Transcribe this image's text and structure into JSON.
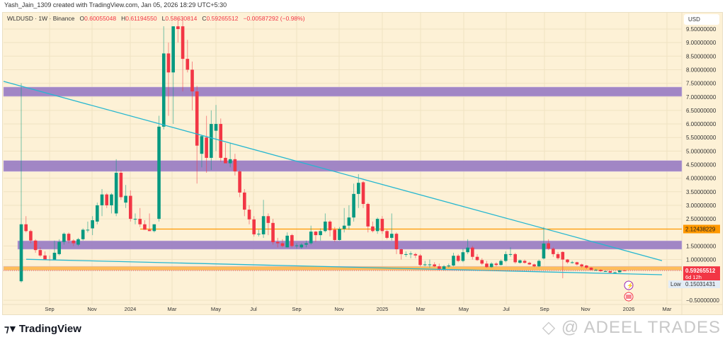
{
  "credit": "Yash_Jain_1309 created with TradingView.com, Jan 05, 2026 18:29 UTC+5:30",
  "legend": {
    "symbol": "WLDUSD · 1W · Binance",
    "o_label": "O",
    "o": "0.60055048",
    "h_label": "H",
    "h": "0.61194550",
    "l_label": "L",
    "l": "0.58630814",
    "c_label": "C",
    "c": "0.59265512",
    "change": "−0.00587292 (−0.98%)"
  },
  "currency": "USD",
  "colors": {
    "up": "#089981",
    "down": "#f23645",
    "zone_purple": "#9c7fc4",
    "zone_orange": "#ffb74d",
    "level_orange": "#ff9800",
    "trendline": "#26b7d0",
    "background": "#fdf1d6"
  },
  "price_axis": [
    "9.50000000",
    "9.00000000",
    "8.50000000",
    "8.00000000",
    "7.50000000",
    "7.00000000",
    "6.50000000",
    "6.00000000",
    "5.50000000",
    "5.00000000",
    "4.50000000",
    "4.00000000",
    "3.50000000",
    "3.00000000",
    "2.50000000",
    "1.50000000",
    "1.00000000",
    "−0.50000000"
  ],
  "price_axis_values": [
    9.5,
    9,
    8.5,
    8,
    7.5,
    7,
    6.5,
    6,
    5.5,
    5,
    4.5,
    4,
    3.5,
    3,
    2.5,
    1.5,
    1,
    -0.5
  ],
  "tags": {
    "level": {
      "text": "2.12438229",
      "value": 2.12438229
    },
    "last": {
      "text": "0.59265512",
      "countdown": "6d 12h",
      "value": 0.59265512
    },
    "low": {
      "label": "Low",
      "text": "0.15031431",
      "value": 0.15031431
    }
  },
  "time_axis": [
    "Sep",
    "Nov",
    "2024",
    "Mar",
    "May",
    "Jul",
    "Sep",
    "Nov",
    "2025",
    "Mar",
    "May",
    "Jul",
    "Sep",
    "Nov",
    "2026",
    "Mar"
  ],
  "chart_data": {
    "type": "candlestick",
    "interval": "1W",
    "candles_ohlc": [
      [
        0.2,
        7.5,
        0.15,
        2.3
      ],
      [
        2.3,
        2.6,
        2.0,
        2.05
      ],
      [
        2.05,
        2.1,
        1.6,
        1.7
      ],
      [
        1.7,
        1.75,
        1.25,
        1.35
      ],
      [
        1.35,
        1.45,
        1.1,
        1.15
      ],
      [
        1.15,
        1.3,
        1.0,
        1.0
      ],
      [
        1.0,
        1.15,
        0.95,
        0.98
      ],
      [
        1.0,
        1.7,
        0.98,
        1.25
      ],
      [
        1.2,
        1.75,
        1.15,
        1.65
      ],
      [
        1.65,
        2.0,
        1.55,
        1.95
      ],
      [
        1.95,
        2.0,
        1.6,
        1.7
      ],
      [
        1.7,
        1.75,
        1.5,
        1.6
      ],
      [
        1.55,
        1.8,
        1.5,
        1.75
      ],
      [
        1.75,
        2.15,
        1.7,
        2.1
      ],
      [
        2.1,
        2.4,
        2.0,
        2.1
      ],
      [
        2.15,
        2.6,
        1.9,
        2.45
      ],
      [
        2.4,
        3.1,
        2.3,
        3.0
      ],
      [
        3.0,
        3.6,
        2.6,
        3.4
      ],
      [
        3.4,
        3.45,
        2.9,
        3.0
      ],
      [
        3.0,
        3.45,
        2.7,
        3.4
      ],
      [
        2.7,
        4.7,
        2.6,
        4.2
      ],
      [
        4.2,
        4.3,
        3.2,
        3.3
      ],
      [
        3.1,
        3.75,
        2.9,
        3.35
      ],
      [
        3.35,
        3.55,
        2.4,
        2.5
      ],
      [
        2.5,
        2.7,
        2.3,
        2.5
      ],
      [
        2.5,
        2.9,
        2.2,
        2.3
      ],
      [
        2.3,
        2.45,
        2.1,
        2.1
      ],
      [
        2.1,
        2.7,
        2.05,
        2.05
      ],
      [
        2.05,
        2.3,
        2.0,
        2.3
      ],
      [
        2.5,
        6.3,
        2.4,
        5.9
      ],
      [
        5.9,
        9.6,
        5.8,
        8.6
      ],
      [
        8.6,
        9.0,
        6.3,
        7.9
      ],
      [
        7.9,
        9.6,
        6.0,
        9.6
      ],
      [
        9.6,
        9.9,
        9.0,
        9.5
      ],
      [
        9.6,
        9.9,
        7.2,
        8.4
      ],
      [
        8.4,
        9.1,
        7.9,
        8.0
      ],
      [
        8.0,
        8.3,
        6.5,
        7.2
      ],
      [
        7.2,
        7.4,
        3.8,
        5.2
      ],
      [
        4.9,
        5.6,
        4.4,
        5.55
      ],
      [
        5.5,
        6.3,
        4.2,
        4.75
      ],
      [
        4.75,
        6.5,
        4.3,
        6.0
      ],
      [
        5.75,
        6.7,
        5.0,
        6.0
      ],
      [
        6.0,
        6.2,
        4.6,
        4.75
      ],
      [
        4.75,
        5.3,
        4.6,
        4.55
      ],
      [
        4.55,
        5.3,
        4.4,
        4.7
      ],
      [
        4.7,
        4.9,
        4.1,
        4.25
      ],
      [
        4.25,
        4.3,
        3.3,
        3.47
      ],
      [
        3.47,
        3.6,
        2.6,
        2.84
      ],
      [
        2.84,
        3.0,
        2.3,
        2.48
      ],
      [
        2.48,
        2.6,
        1.85,
        1.93
      ],
      [
        1.93,
        2.1,
        1.85,
        1.95
      ],
      [
        1.93,
        3.2,
        1.8,
        2.6
      ],
      [
        2.6,
        2.7,
        1.9,
        2.35
      ],
      [
        2.35,
        2.5,
        1.55,
        1.64
      ],
      [
        1.65,
        1.8,
        1.45,
        1.6
      ],
      [
        1.6,
        1.75,
        1.45,
        1.5
      ],
      [
        1.45,
        2.0,
        1.45,
        1.88
      ],
      [
        1.9,
        1.95,
        1.45,
        1.5
      ],
      [
        1.5,
        1.6,
        1.4,
        1.52
      ],
      [
        1.45,
        1.6,
        1.4,
        1.55
      ],
      [
        1.55,
        1.7,
        1.45,
        1.6
      ],
      [
        1.6,
        2.25,
        1.55,
        2.03
      ],
      [
        2.03,
        2.05,
        1.65,
        1.9
      ],
      [
        1.9,
        2.15,
        1.7,
        2.05
      ],
      [
        2.05,
        2.7,
        2.0,
        2.4
      ],
      [
        2.4,
        2.45,
        1.85,
        2.08
      ],
      [
        2.1,
        2.2,
        1.65,
        1.72
      ],
      [
        1.72,
        2.2,
        1.7,
        2.13
      ],
      [
        2.13,
        2.9,
        2.0,
        2.25
      ],
      [
        2.25,
        3.0,
        2.1,
        2.55
      ],
      [
        2.55,
        3.8,
        2.4,
        3.42
      ],
      [
        3.42,
        4.15,
        2.9,
        3.83
      ],
      [
        3.85,
        3.9,
        2.9,
        3.05
      ],
      [
        3.05,
        3.1,
        2.0,
        2.22
      ],
      [
        2.22,
        2.4,
        2.0,
        2.05
      ],
      [
        2.05,
        2.55,
        1.95,
        2.5
      ],
      [
        2.5,
        2.6,
        1.95,
        2.05
      ],
      [
        2.05,
        2.1,
        1.75,
        1.8
      ],
      [
        1.8,
        2.7,
        1.7,
        1.95
      ],
      [
        1.95,
        2.0,
        1.2,
        1.38
      ],
      [
        1.38,
        1.4,
        1.0,
        1.2
      ],
      [
        1.2,
        1.3,
        1.1,
        1.2
      ],
      [
        1.2,
        1.3,
        1.05,
        1.22
      ],
      [
        1.2,
        1.25,
        1.05,
        1.15
      ],
      [
        1.15,
        1.2,
        0.75,
        0.8
      ],
      [
        0.8,
        0.95,
        0.75,
        0.82
      ],
      [
        0.8,
        1.0,
        0.7,
        0.82
      ],
      [
        0.82,
        0.9,
        0.72,
        0.75
      ],
      [
        0.75,
        0.85,
        0.6,
        0.62
      ],
      [
        0.62,
        0.8,
        0.6,
        0.75
      ],
      [
        0.75,
        0.85,
        0.7,
        0.78
      ],
      [
        0.78,
        1.25,
        0.75,
        1.14
      ],
      [
        1.14,
        1.2,
        0.9,
        0.95
      ],
      [
        0.95,
        1.4,
        0.9,
        1.27
      ],
      [
        1.27,
        1.75,
        1.2,
        1.44
      ],
      [
        1.44,
        1.5,
        1.0,
        1.1
      ],
      [
        1.1,
        1.2,
        0.95,
        0.98
      ],
      [
        0.98,
        1.05,
        0.8,
        0.85
      ],
      [
        0.85,
        0.95,
        0.7,
        0.72
      ],
      [
        0.72,
        0.9,
        0.7,
        0.85
      ],
      [
        0.85,
        0.9,
        0.75,
        0.8
      ],
      [
        0.8,
        1.0,
        0.78,
        0.95
      ],
      [
        0.95,
        1.3,
        0.9,
        1.2
      ],
      [
        1.2,
        1.45,
        1.1,
        1.2
      ],
      [
        1.2,
        1.25,
        0.85,
        0.9
      ],
      [
        0.88,
        1.0,
        0.85,
        0.97
      ],
      [
        0.95,
        1.0,
        0.85,
        0.88
      ],
      [
        0.88,
        0.92,
        0.8,
        0.82
      ],
      [
        0.82,
        0.85,
        0.72,
        0.75
      ],
      [
        0.75,
        1.0,
        0.72,
        0.95
      ],
      [
        1.04,
        2.2,
        1.0,
        1.59
      ],
      [
        1.6,
        1.75,
        1.35,
        1.4
      ],
      [
        1.4,
        1.45,
        1.1,
        1.2
      ],
      [
        1.2,
        1.28,
        1.0,
        1.05
      ],
      [
        1.28,
        1.3,
        0.31,
        1.0
      ],
      [
        1.0,
        1.02,
        0.85,
        0.9
      ],
      [
        0.9,
        0.95,
        0.85,
        0.9
      ],
      [
        0.9,
        0.92,
        0.78,
        0.82
      ],
      [
        0.82,
        0.85,
        0.7,
        0.75
      ],
      [
        0.78,
        0.8,
        0.65,
        0.7
      ],
      [
        0.7,
        0.72,
        0.6,
        0.62
      ],
      [
        0.62,
        0.66,
        0.58,
        0.62
      ],
      [
        0.62,
        0.64,
        0.55,
        0.57
      ],
      [
        0.57,
        0.6,
        0.55,
        0.57
      ],
      [
        0.57,
        0.58,
        0.5,
        0.52
      ],
      [
        0.52,
        0.55,
        0.5,
        0.53
      ],
      [
        0.53,
        0.62,
        0.52,
        0.6
      ],
      [
        0.60055048,
        0.6119455,
        0.58630814,
        0.59265512
      ]
    ],
    "zones": [
      {
        "type": "rectangle",
        "low": 7.02,
        "high": 7.36,
        "color": "#9c7fc4"
      },
      {
        "type": "rectangle",
        "low": 4.25,
        "high": 4.65,
        "color": "#9c7fc4"
      },
      {
        "type": "rectangle",
        "low": 1.38,
        "high": 1.69,
        "color": "#9c7fc4"
      },
      {
        "type": "rectangle",
        "low": 0.6,
        "high": 0.75,
        "color": "#ffb74d"
      }
    ],
    "horizontal_levels": [
      2.12438229
    ],
    "trendlines": [
      {
        "from_price": 7.57,
        "to_price": 0.96
      },
      {
        "from_price": 1.01,
        "to_price": 0.44
      }
    ],
    "ylim": [
      -0.6,
      9.9
    ]
  },
  "branding": {
    "logo": "TradingView",
    "watermark": "@ ADEEL TRADES"
  }
}
